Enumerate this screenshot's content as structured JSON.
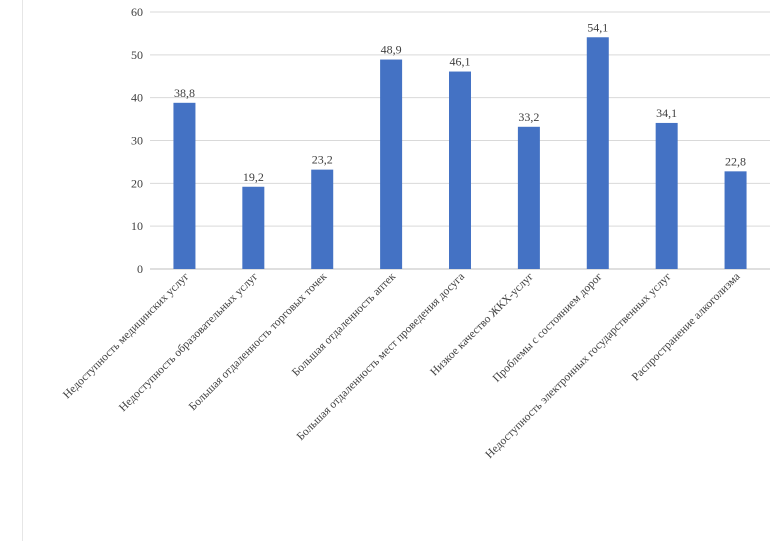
{
  "chart_data": {
    "type": "bar",
    "title": "",
    "xlabel": "",
    "ylabel": "",
    "ylim": [
      0,
      60
    ],
    "yticks": [
      0,
      10,
      20,
      30,
      40,
      50,
      60
    ],
    "grid": true,
    "bar_color": "#4472C4",
    "grid_color": "#d9d9d9",
    "categories": [
      "Недоступность медицинских услуг",
      "Недоступность образовательных услуг",
      "Большая отдаленность торговых точек",
      "Большая отдаленность аптек",
      "Большая отдаленность мест проведения досуга",
      "Низкое качество ЖКХ-услуг",
      "Проблемы с состоянием дорог",
      "Недоступность электронных государственных услуг",
      "Распространение алкоголизма"
    ],
    "values": [
      38.8,
      19.2,
      23.2,
      48.9,
      46.1,
      33.2,
      54.1,
      34.1,
      22.8
    ],
    "value_labels": [
      "38,8",
      "19,2",
      "23,2",
      "48,9",
      "46,1",
      "33,2",
      "54,1",
      "34,1",
      "22,8"
    ]
  }
}
